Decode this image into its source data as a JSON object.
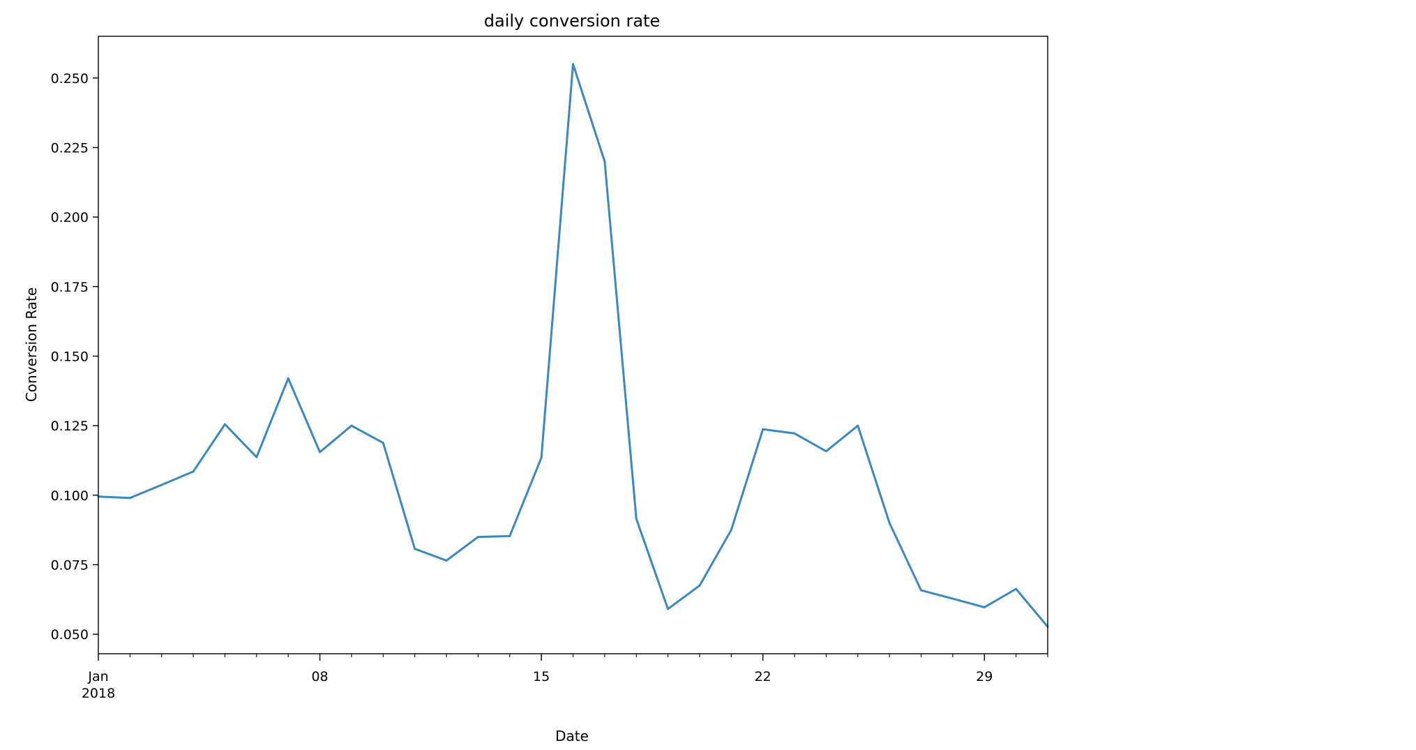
{
  "chart_data": {
    "type": "line",
    "title": "daily conversion rate",
    "xlabel": "Date",
    "ylabel": "Conversion Rate",
    "x": [
      "2018-01-01",
      "2018-01-02",
      "2018-01-03",
      "2018-01-04",
      "2018-01-05",
      "2018-01-06",
      "2018-01-07",
      "2018-01-08",
      "2018-01-09",
      "2018-01-10",
      "2018-01-11",
      "2018-01-12",
      "2018-01-13",
      "2018-01-14",
      "2018-01-15",
      "2018-01-16",
      "2018-01-17",
      "2018-01-18",
      "2018-01-19",
      "2018-01-20",
      "2018-01-21",
      "2018-01-22",
      "2018-01-23",
      "2018-01-24",
      "2018-01-25",
      "2018-01-26",
      "2018-01-27",
      "2018-01-28",
      "2018-01-29",
      "2018-01-30",
      "2018-01-31"
    ],
    "series": [
      {
        "values": [
          0.0995,
          0.099,
          0.1037,
          0.1085,
          0.1255,
          0.1137,
          0.142,
          0.1155,
          0.125,
          0.1188,
          0.0807,
          0.0765,
          0.085,
          0.0853,
          0.1135,
          0.255,
          0.22,
          0.0915,
          0.0591,
          0.0675,
          0.0875,
          0.1237,
          0.1222,
          0.1158,
          0.125,
          0.09,
          0.0658,
          0.0628,
          0.0597,
          0.0663,
          0.0527
        ],
        "color": "#3a88c0"
      }
    ],
    "xlim": [
      "2018-01-01",
      "2018-01-31"
    ],
    "ylim": [
      0.043,
      0.265
    ],
    "y_ticks": [
      "0.050",
      "0.075",
      "0.100",
      "0.125",
      "0.150",
      "0.175",
      "0.200",
      "0.225",
      "0.250"
    ],
    "x_ticks": [
      {
        "date": "2018-01-01",
        "label": "Jan",
        "sublabel": "2018"
      },
      {
        "date": "2018-01-08",
        "label": "08"
      },
      {
        "date": "2018-01-15",
        "label": "15"
      },
      {
        "date": "2018-01-22",
        "label": "22"
      },
      {
        "date": "2018-01-29",
        "label": "29"
      }
    ],
    "grid": false,
    "legend": false
  }
}
